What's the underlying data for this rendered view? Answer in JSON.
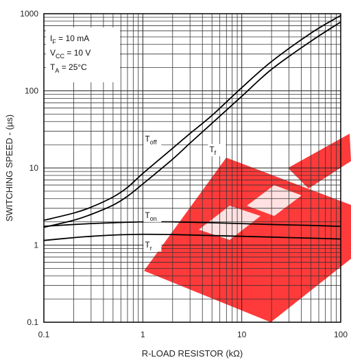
{
  "watermark_color": "#ff1f1f",
  "chart_data": {
    "type": "line",
    "x_scale": "log",
    "y_scale": "log",
    "xlim": [
      0.1,
      100
    ],
    "ylim": [
      0.1,
      1000
    ],
    "xlabel": "R-LOAD RESISTOR (kΩ)",
    "ylabel": "SWITCHING SPEED -  (µs)",
    "x_ticks": [
      "0.1",
      "1",
      "10",
      "100"
    ],
    "y_ticks": [
      "0.1",
      "1",
      "10",
      "100",
      "1000"
    ],
    "grid": true,
    "conditions": [
      {
        "main": "I",
        "sub": "F",
        "rest": " = 10 mA"
      },
      {
        "main": "V",
        "sub": "CC",
        "rest": " = 10 V"
      },
      {
        "main": "T",
        "sub": "A",
        "rest": " = 25°C"
      }
    ],
    "series": [
      {
        "name_main": "T",
        "name_sub": "off",
        "label_at": [
          1.05,
          22
        ],
        "x": [
          0.1,
          0.2,
          0.3,
          0.5,
          0.7,
          1,
          2,
          3,
          5,
          10,
          20,
          50,
          100
        ],
        "y": [
          2.1,
          2.6,
          3.1,
          4.2,
          5.6,
          8.5,
          18,
          28,
          48,
          110,
          240,
          560,
          950
        ]
      },
      {
        "name_main": "T",
        "name_sub": "f",
        "label_at": [
          4.7,
          16
        ],
        "x": [
          0.1,
          0.2,
          0.3,
          0.5,
          0.7,
          1,
          2,
          3,
          5,
          10,
          20,
          50,
          100
        ],
        "y": [
          1.7,
          2.1,
          2.5,
          3.3,
          4.3,
          6.2,
          13,
          21,
          38,
          85,
          190,
          440,
          780
        ]
      },
      {
        "name_main": "T",
        "name_sub": "on",
        "label_at": [
          1.05,
          2.25
        ],
        "x": [
          0.1,
          0.2,
          0.3,
          0.5,
          1,
          2,
          5,
          10,
          20,
          50,
          100
        ],
        "y": [
          1.75,
          1.85,
          1.9,
          1.95,
          2.0,
          2.0,
          1.95,
          1.9,
          1.85,
          1.8,
          1.75
        ]
      },
      {
        "name_main": "T",
        "name_sub": "r",
        "label_at": [
          1.05,
          0.93
        ],
        "x": [
          0.1,
          0.2,
          0.3,
          0.5,
          1,
          2,
          5,
          10,
          20,
          50,
          100
        ],
        "y": [
          1.15,
          1.25,
          1.3,
          1.35,
          1.38,
          1.37,
          1.33,
          1.3,
          1.27,
          1.23,
          1.2
        ]
      }
    ]
  }
}
